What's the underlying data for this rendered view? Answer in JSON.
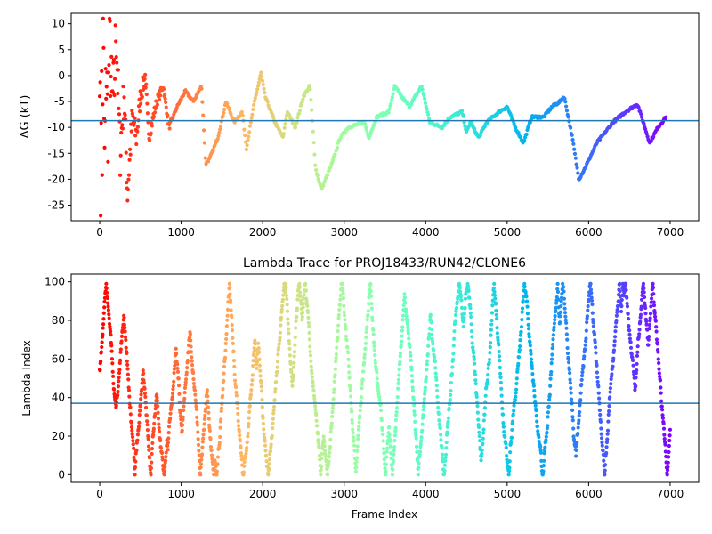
{
  "chart_data": [
    {
      "type": "scatter",
      "title": "",
      "xlabel": "",
      "ylabel": "ΔG (kT)",
      "xlim": [
        -350,
        7350
      ],
      "ylim": [
        -28,
        12
      ],
      "xticks": [
        0,
        1000,
        2000,
        3000,
        4000,
        5000,
        6000,
        7000
      ],
      "yticks": [
        10,
        5,
        0,
        -5,
        -10,
        -15,
        -20,
        -25
      ],
      "grid": false,
      "colormap": "rainbow (red at frame 0 to violet at the last frame)",
      "reference_line": {
        "y": -8.7,
        "color": "#1f77b4"
      },
      "trace_points": [
        [
          0,
          10
        ],
        [
          10,
          -28
        ],
        [
          20,
          5
        ],
        [
          30,
          -20
        ],
        [
          40,
          11
        ],
        [
          60,
          -18
        ],
        [
          80,
          3
        ],
        [
          100,
          -10
        ],
        [
          120,
          8
        ],
        [
          150,
          -6
        ],
        [
          180,
          -2
        ],
        [
          200,
          10
        ],
        [
          250,
          -15
        ],
        [
          300,
          -3
        ],
        [
          340,
          -23
        ],
        [
          400,
          -8
        ],
        [
          450,
          -12
        ],
        [
          500,
          -4
        ],
        [
          560,
          0
        ],
        [
          600,
          -12
        ],
        [
          700,
          -5
        ],
        [
          780,
          -2
        ],
        [
          850,
          -10
        ],
        [
          950,
          -6
        ],
        [
          1050,
          -3
        ],
        [
          1150,
          -5
        ],
        [
          1250,
          -2
        ],
        [
          1300,
          -17
        ],
        [
          1350,
          -16
        ],
        [
          1450,
          -12
        ],
        [
          1550,
          -5
        ],
        [
          1650,
          -9
        ],
        [
          1750,
          -7
        ],
        [
          1800,
          -14
        ],
        [
          1900,
          -5
        ],
        [
          1980,
          0.5
        ],
        [
          2030,
          -4
        ],
        [
          2150,
          -9
        ],
        [
          2250,
          -12
        ],
        [
          2300,
          -7
        ],
        [
          2400,
          -10
        ],
        [
          2500,
          -4
        ],
        [
          2580,
          -2
        ],
        [
          2650,
          -18
        ],
        [
          2720,
          -22
        ],
        [
          2850,
          -17
        ],
        [
          2950,
          -12
        ],
        [
          3050,
          -10
        ],
        [
          3250,
          -9
        ],
        [
          3300,
          -12
        ],
        [
          3400,
          -8
        ],
        [
          3550,
          -7
        ],
        [
          3620,
          -2
        ],
        [
          3700,
          -4
        ],
        [
          3800,
          -6
        ],
        [
          3950,
          -2
        ],
        [
          4050,
          -9
        ],
        [
          4200,
          -10
        ],
        [
          4300,
          -8
        ],
        [
          4450,
          -7
        ],
        [
          4500,
          -11
        ],
        [
          4550,
          -9
        ],
        [
          4650,
          -12
        ],
        [
          4750,
          -9
        ],
        [
          4900,
          -7
        ],
        [
          5000,
          -6
        ],
        [
          5050,
          -8
        ],
        [
          5100,
          -10
        ],
        [
          5200,
          -13
        ],
        [
          5300,
          -8
        ],
        [
          5450,
          -8
        ],
        [
          5550,
          -6
        ],
        [
          5650,
          -5
        ],
        [
          5700,
          -4
        ],
        [
          5800,
          -12
        ],
        [
          5880,
          -20
        ],
        [
          5950,
          -18
        ],
        [
          6100,
          -13
        ],
        [
          6200,
          -11
        ],
        [
          6300,
          -9
        ],
        [
          6450,
          -7
        ],
        [
          6600,
          -5.5
        ],
        [
          6650,
          -8
        ],
        [
          6750,
          -13
        ],
        [
          6850,
          -10
        ],
        [
          6950,
          -8
        ]
      ]
    },
    {
      "type": "scatter",
      "title": "Lambda Trace for PROJ18433/RUN42/CLONE6",
      "xlabel": "Frame Index",
      "ylabel": "Lambda Index",
      "xlim": [
        -350,
        7350
      ],
      "ylim": [
        -4,
        104
      ],
      "xticks": [
        0,
        1000,
        2000,
        3000,
        4000,
        5000,
        6000,
        7000
      ],
      "yticks": [
        0,
        20,
        40,
        60,
        80,
        100
      ],
      "grid": false,
      "colormap": "rainbow (red at frame 0 to violet at the last frame)",
      "reference_line": {
        "y": 37,
        "color": "#1f77b4"
      },
      "frame_count": 7000,
      "value_range": [
        0,
        99
      ]
    }
  ]
}
